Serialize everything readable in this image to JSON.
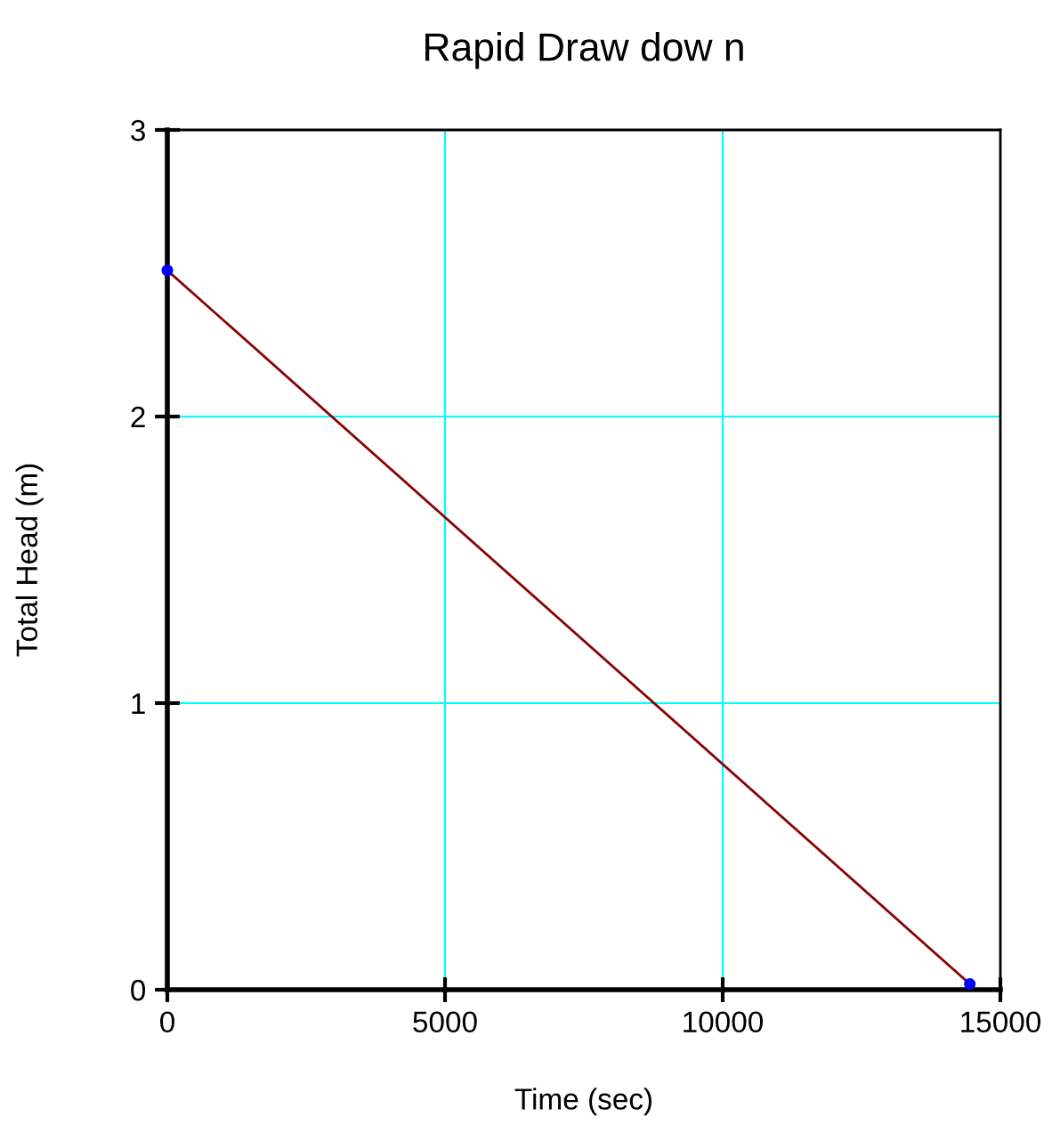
{
  "chart_data": {
    "type": "line",
    "title": "Rapid Draw dow n",
    "xlabel": "Time (sec)",
    "ylabel": "Total Head (m)",
    "xlim": [
      0,
      15000
    ],
    "ylim": [
      0,
      3
    ],
    "xticks": [
      0,
      5000,
      10000,
      15000
    ],
    "yticks": [
      0,
      1,
      2,
      3
    ],
    "grid": true,
    "x": [
      0,
      14450
    ],
    "series": [
      {
        "color": "#8b0000",
        "values": [
          2.51,
          0.02
        ]
      },
      {
        "type": "scatter",
        "color": "#0000ff",
        "values": [
          2.51,
          0.02
        ]
      }
    ]
  }
}
